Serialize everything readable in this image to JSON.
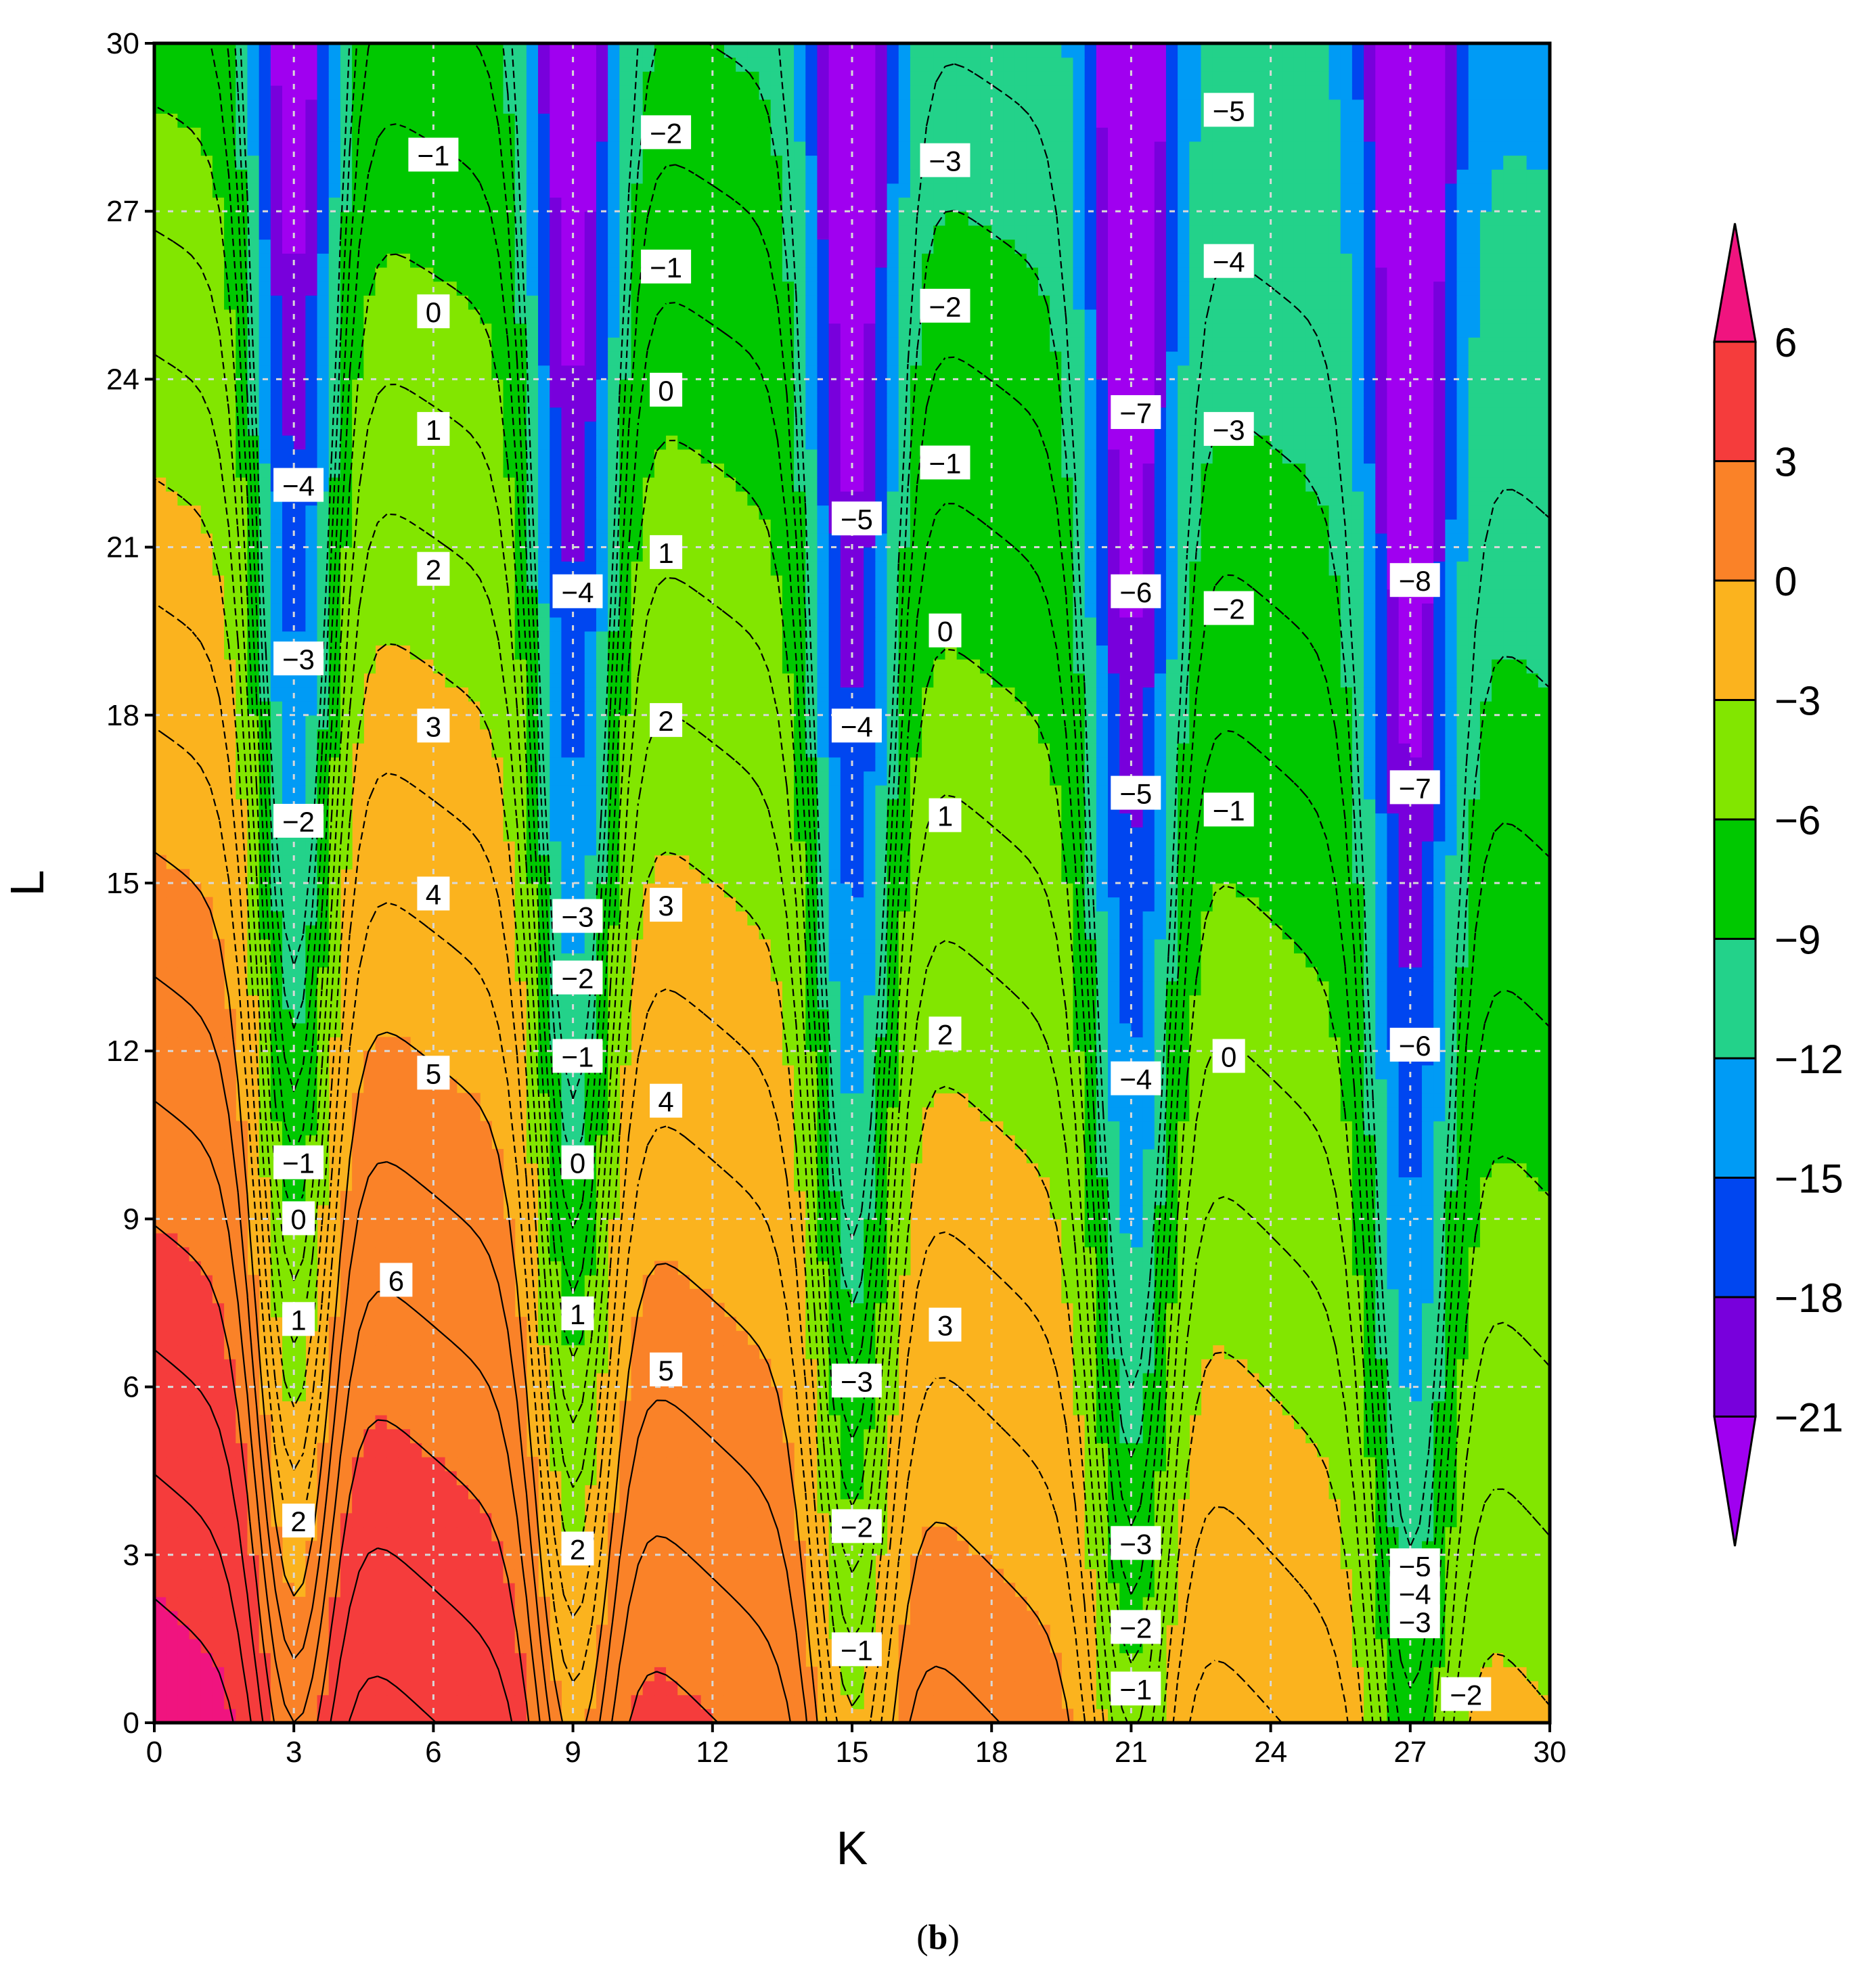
{
  "chart_data": {
    "type": "contour",
    "xlabel": "K",
    "ylabel": "L",
    "xlim": [
      0,
      30
    ],
    "ylim": [
      0,
      30
    ],
    "xticks": [
      "0",
      "3",
      "6",
      "9",
      "12",
      "15",
      "18",
      "21",
      "24",
      "27",
      "30"
    ],
    "yticks": [
      "0",
      "3",
      "6",
      "9",
      "12",
      "15",
      "18",
      "21",
      "24",
      "27",
      "30"
    ],
    "grid": true,
    "colorbar": {
      "placement": "right",
      "ticks": [
        "6",
        "3",
        "0",
        "−3",
        "−6",
        "−9",
        "−12",
        "−15",
        "−18",
        "−21"
      ],
      "colors": [
        "#f0147f",
        "#f53c3c",
        "#fa8228",
        "#fbb31e",
        "#82e600",
        "#00c800",
        "#23d28a",
        "#009bf5",
        "#0046f0",
        "#7800dc",
        "#a000f0"
      ]
    },
    "column_centers": [
      3,
      9,
      15,
      21,
      27
    ],
    "contour_labels": [
      {
        "k": 6,
        "l": 28,
        "text": "−1"
      },
      {
        "k": 6,
        "l": 25.2,
        "text": "0"
      },
      {
        "k": 6,
        "l": 23.1,
        "text": "1"
      },
      {
        "k": 6,
        "l": 20.6,
        "text": "2"
      },
      {
        "k": 6,
        "l": 17.8,
        "text": "3"
      },
      {
        "k": 6,
        "l": 14.8,
        "text": "4"
      },
      {
        "k": 6,
        "l": 11.6,
        "text": "5"
      },
      {
        "k": 5.2,
        "l": 7.9,
        "text": "6"
      },
      {
        "k": 3.1,
        "l": 22.1,
        "text": "−4"
      },
      {
        "k": 3.1,
        "l": 19,
        "text": "−3"
      },
      {
        "k": 3.1,
        "l": 16.1,
        "text": "−2"
      },
      {
        "k": 3.1,
        "l": 10,
        "text": "−1"
      },
      {
        "k": 3.1,
        "l": 9,
        "text": "0"
      },
      {
        "k": 3.1,
        "l": 7.2,
        "text": "1"
      },
      {
        "k": 3.1,
        "l": 3.6,
        "text": "2"
      },
      {
        "k": 11,
        "l": 28.4,
        "text": "−2"
      },
      {
        "k": 11,
        "l": 26,
        "text": "−1"
      },
      {
        "k": 11,
        "l": 23.8,
        "text": "0"
      },
      {
        "k": 11,
        "l": 20.9,
        "text": "1"
      },
      {
        "k": 11,
        "l": 17.9,
        "text": "2"
      },
      {
        "k": 11,
        "l": 14.6,
        "text": "3"
      },
      {
        "k": 11,
        "l": 11.1,
        "text": "4"
      },
      {
        "k": 11,
        "l": 6.3,
        "text": "5"
      },
      {
        "k": 9.1,
        "l": 20.2,
        "text": "−4"
      },
      {
        "k": 9.1,
        "l": 14.4,
        "text": "−3"
      },
      {
        "k": 9.1,
        "l": 13.3,
        "text": "−2"
      },
      {
        "k": 9.1,
        "l": 11.9,
        "text": "−1"
      },
      {
        "k": 9.1,
        "l": 10,
        "text": "0"
      },
      {
        "k": 9.1,
        "l": 7.3,
        "text": "1"
      },
      {
        "k": 9.1,
        "l": 3.1,
        "text": "2"
      },
      {
        "k": 17,
        "l": 27.9,
        "text": "−3"
      },
      {
        "k": 17,
        "l": 25.3,
        "text": "−2"
      },
      {
        "k": 17,
        "l": 22.5,
        "text": "−1"
      },
      {
        "k": 17,
        "l": 19.5,
        "text": "0"
      },
      {
        "k": 17,
        "l": 16.2,
        "text": "1"
      },
      {
        "k": 17,
        "l": 12.3,
        "text": "2"
      },
      {
        "k": 17,
        "l": 7.1,
        "text": "3"
      },
      {
        "k": 15.1,
        "l": 21.5,
        "text": "−5"
      },
      {
        "k": 15.1,
        "l": 17.8,
        "text": "−4"
      },
      {
        "k": 15.1,
        "l": 6.1,
        "text": "−3"
      },
      {
        "k": 15.1,
        "l": 3.5,
        "text": "−2"
      },
      {
        "k": 15.1,
        "l": 1.3,
        "text": "−1"
      },
      {
        "k": 23.1,
        "l": 28.8,
        "text": "−5"
      },
      {
        "k": 23.1,
        "l": 26.1,
        "text": "−4"
      },
      {
        "k": 23.1,
        "l": 23.1,
        "text": "−3"
      },
      {
        "k": 23.1,
        "l": 19.9,
        "text": "−2"
      },
      {
        "k": 23.1,
        "l": 16.3,
        "text": "−1"
      },
      {
        "k": 23.1,
        "l": 11.9,
        "text": "0"
      },
      {
        "k": 21.1,
        "l": 23.4,
        "text": "−7"
      },
      {
        "k": 21.1,
        "l": 20.2,
        "text": "−6"
      },
      {
        "k": 21.1,
        "l": 16.6,
        "text": "−5"
      },
      {
        "k": 21.1,
        "l": 11.5,
        "text": "−4"
      },
      {
        "k": 21.1,
        "l": 3.2,
        "text": "−3"
      },
      {
        "k": 21.1,
        "l": 1.7,
        "text": "−2"
      },
      {
        "k": 21.1,
        "l": 0.6,
        "text": "−1"
      },
      {
        "k": 27.1,
        "l": 20.4,
        "text": "−8"
      },
      {
        "k": 27.1,
        "l": 16.7,
        "text": "−7"
      },
      {
        "k": 27.1,
        "l": 12.1,
        "text": "−6"
      },
      {
        "k": 27.1,
        "l": 2.8,
        "text": "−5"
      },
      {
        "k": 27.1,
        "l": 2.3,
        "text": "−4"
      },
      {
        "k": 27.1,
        "l": 1.8,
        "text": "−3"
      },
      {
        "k": 28.2,
        "l": 0.5,
        "text": "−2"
      }
    ]
  },
  "figure": {
    "caption_letter": "b"
  }
}
